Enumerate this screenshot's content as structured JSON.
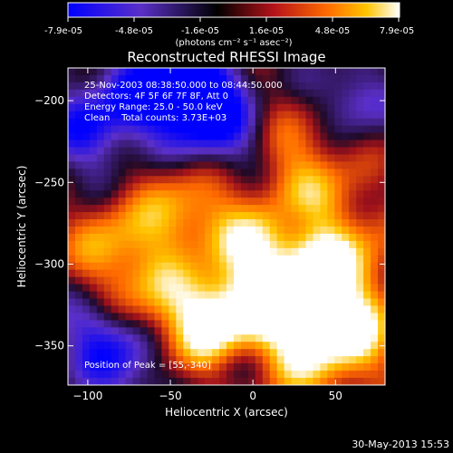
{
  "colorbar": {
    "tick_labels": [
      "-7.9e-05",
      "-4.8e-05",
      "-1.6e-05",
      "1.6e-05",
      "4.8e-05",
      "7.9e-05"
    ],
    "units": "(photons cm⁻² s⁻¹ asec⁻²)",
    "range": [
      -7.9e-05,
      7.9e-05
    ],
    "colors": [
      "#0000ff",
      "#5a2fc8",
      "#000000",
      "#b4121a",
      "#ff6a00",
      "#ffc400",
      "#ffffff"
    ]
  },
  "chart_data": {
    "type": "heatmap",
    "title": "Reconstructed RHESSI Image",
    "xlabel": "Heliocentric X (arcsec)",
    "ylabel": "Heliocentric Y (arcsec)",
    "xlim": [
      -112,
      80
    ],
    "ylim": [
      -374,
      -180
    ],
    "x_ticks": [
      -100,
      -50,
      0,
      50
    ],
    "y_ticks": [
      -200,
      -250,
      -300,
      -350
    ],
    "x_tick_labels": [
      "−100",
      "−50",
      "0",
      "50"
    ],
    "y_tick_labels": [
      "−200",
      "−250",
      "−300",
      "−350"
    ],
    "peak": [
      55,
      -340
    ],
    "annotations": [
      "25-Nov-2003 08:38:50.000 to 08:44:50.000",
      "Detectors: 4F 5F 6F 7F 8F, Att 0",
      "Energy Range: 25.0 - 50.0 keV",
      "Clean    Total counts: 3.73E+03"
    ],
    "peak_label": "Position of Peak = [55,-340]",
    "grid": false
  },
  "footer": {
    "timestamp": "30-May-2013 15:53"
  }
}
